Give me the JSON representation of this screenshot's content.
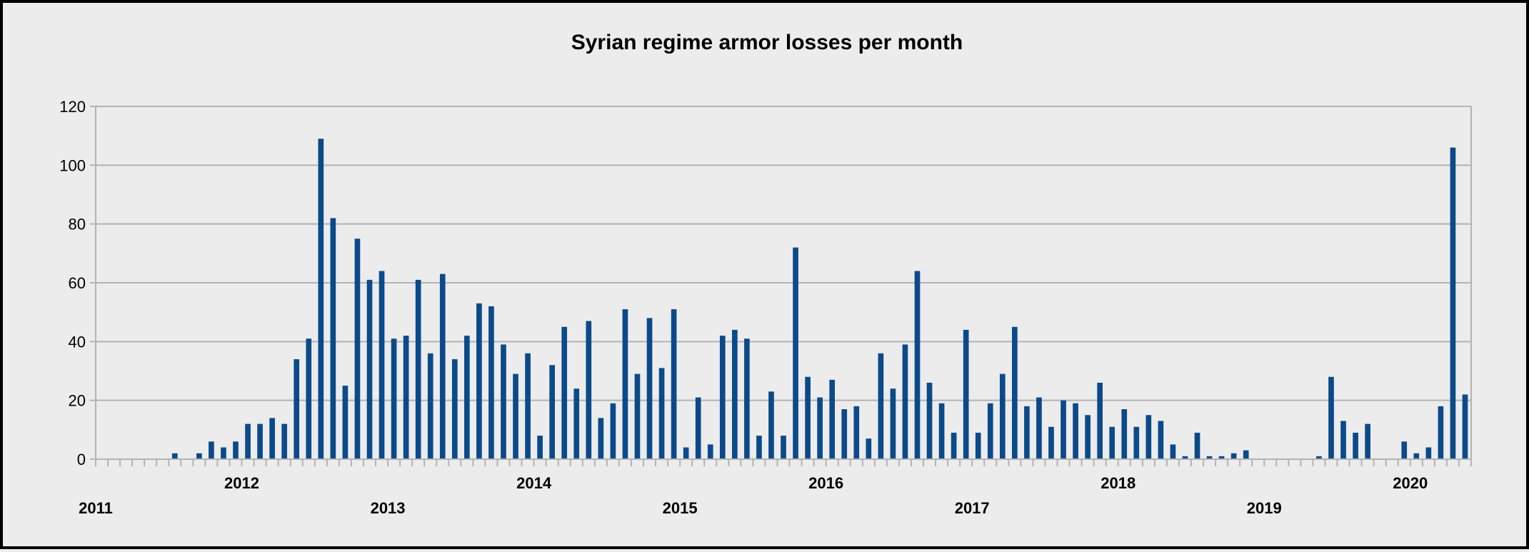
{
  "chart_data": {
    "type": "bar",
    "title": "Syrian regime armor losses per month",
    "xlabel": "",
    "ylabel": "",
    "ylim": [
      0,
      120
    ],
    "yticks": [
      0,
      20,
      40,
      60,
      80,
      100,
      120
    ],
    "grid": true,
    "legend": "none",
    "bar_color": "#0b4a8a",
    "start_month": "2011-01",
    "year_labels": [
      "2011",
      "2012",
      "2013",
      "2014",
      "2015",
      "2016",
      "2017",
      "2018",
      "2019",
      "2020"
    ],
    "values": [
      0,
      0,
      0,
      0,
      0,
      0,
      2,
      0,
      2,
      6,
      4,
      6,
      12,
      12,
      14,
      12,
      34,
      41,
      109,
      82,
      25,
      75,
      61,
      64,
      41,
      42,
      61,
      36,
      63,
      34,
      42,
      53,
      52,
      39,
      29,
      36,
      8,
      32,
      45,
      24,
      47,
      14,
      19,
      51,
      29,
      48,
      31,
      51,
      4,
      21,
      5,
      42,
      44,
      41,
      8,
      23,
      8,
      72,
      28,
      21,
      27,
      17,
      18,
      7,
      36,
      24,
      39,
      64,
      26,
      19,
      9,
      44,
      9,
      19,
      29,
      45,
      18,
      21,
      11,
      20,
      19,
      15,
      26,
      11,
      17,
      11,
      15,
      13,
      5,
      1,
      9,
      1,
      1,
      2,
      3,
      0,
      0,
      0,
      0,
      0,
      1,
      28,
      13,
      9,
      12,
      0,
      0,
      6,
      2,
      4,
      18,
      106,
      22
    ]
  }
}
